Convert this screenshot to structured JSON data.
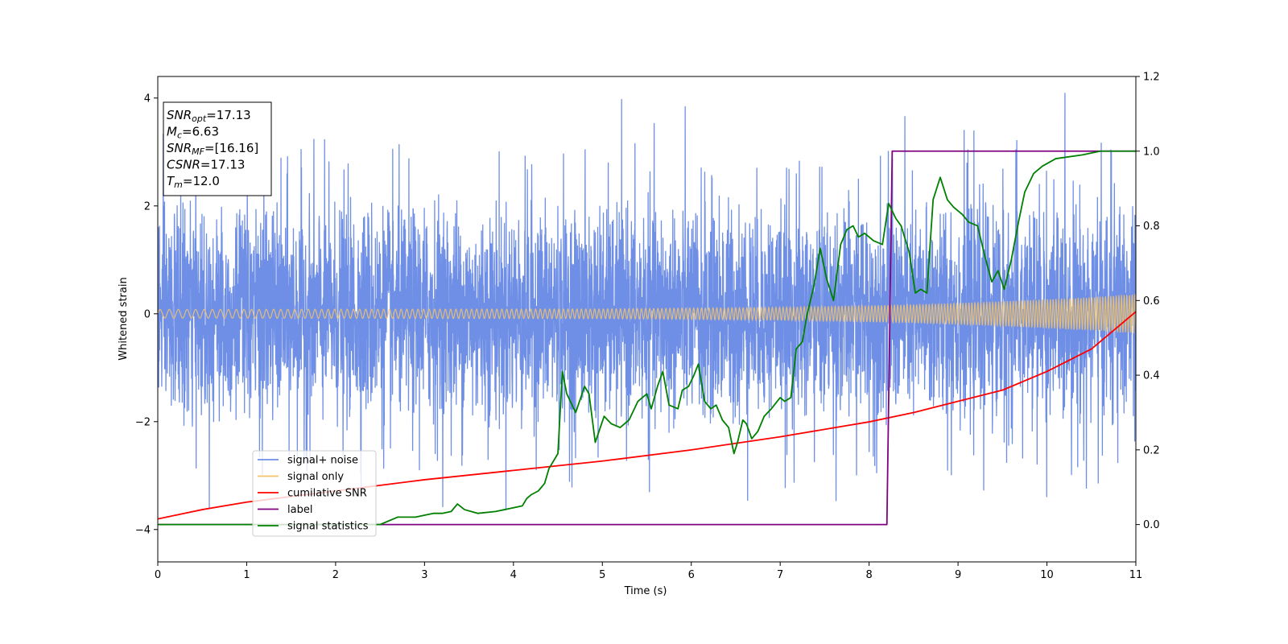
{
  "chart_data": {
    "type": "line",
    "xlabel": "Time (s)",
    "ylabel": "Whitened strain",
    "xlim": [
      0,
      11
    ],
    "ylim": [
      -4.6,
      4.4
    ],
    "y2lim": [
      -0.1,
      1.2
    ],
    "xticks": [
      0,
      1,
      2,
      3,
      4,
      5,
      6,
      7,
      8,
      9,
      10,
      11
    ],
    "yticks": [
      -4,
      -2,
      0,
      2,
      4
    ],
    "y2ticks": [
      0.0,
      0.2,
      0.4,
      0.6,
      0.8,
      1.0,
      1.2
    ],
    "grid": false,
    "legend_position": "lower-left",
    "annotation": {
      "lines": [
        {
          "main": "SNR",
          "sub": "opt",
          "rest": "=17.13"
        },
        {
          "main": "M",
          "sub": "c",
          "rest": "=6.63"
        },
        {
          "main": "SNR",
          "sub": "MF",
          "rest": "=[16.16]"
        },
        {
          "main": "CSNR",
          "sub": "",
          "rest": "=17.13"
        },
        {
          "main": "T",
          "sub": "m",
          "rest": "=12.0"
        }
      ]
    },
    "series": [
      {
        "name": "signal+ noise",
        "color": "#6f8fe6",
        "axis": "left",
        "kind": "noise",
        "std": 0.95,
        "max_abs": 4.0
      },
      {
        "name": "signal only",
        "color": "#f5c46a",
        "axis": "left",
        "kind": "chirp",
        "amplitude": {
          "x": [
            0,
            5,
            7,
            8.5,
            9.5,
            10.5,
            11
          ],
          "y": [
            0.08,
            0.09,
            0.12,
            0.17,
            0.23,
            0.31,
            0.37
          ]
        }
      },
      {
        "name": "cumilative SNR",
        "color": "#ff0000",
        "axis": "right",
        "x": [
          0,
          0.5,
          1,
          2,
          3,
          4,
          5,
          6,
          7,
          8,
          8.5,
          9,
          9.5,
          10,
          10.5,
          11
        ],
        "y": [
          0.015,
          0.04,
          0.06,
          0.09,
          0.12,
          0.145,
          0.17,
          0.2,
          0.235,
          0.275,
          0.3,
          0.33,
          0.36,
          0.41,
          0.47,
          0.57
        ]
      },
      {
        "name": "label",
        "color": "#800080",
        "axis": "right",
        "x": [
          0,
          8.2,
          8.26,
          11
        ],
        "y": [
          0.0,
          0.0,
          1.0,
          1.0
        ]
      },
      {
        "name": "signal statistics",
        "color": "#008000",
        "axis": "right",
        "x": [
          0,
          2.5,
          2.7,
          2.9,
          3.0,
          3.1,
          3.2,
          3.3,
          3.37,
          3.45,
          3.6,
          3.8,
          3.9,
          4.0,
          4.1,
          4.15,
          4.2,
          4.28,
          4.35,
          4.4,
          4.5,
          4.55,
          4.6,
          4.7,
          4.8,
          4.85,
          4.92,
          5.02,
          5.1,
          5.2,
          5.3,
          5.4,
          5.5,
          5.55,
          5.62,
          5.68,
          5.75,
          5.85,
          5.9,
          5.97,
          6.03,
          6.08,
          6.15,
          6.22,
          6.28,
          6.35,
          6.42,
          6.48,
          6.52,
          6.58,
          6.62,
          6.68,
          6.75,
          6.82,
          6.9,
          7.0,
          7.05,
          7.12,
          7.18,
          7.25,
          7.3,
          7.38,
          7.45,
          7.52,
          7.6,
          7.68,
          7.75,
          7.82,
          7.88,
          7.95,
          8.05,
          8.15,
          8.22,
          8.3,
          8.36,
          8.45,
          8.52,
          8.58,
          8.65,
          8.72,
          8.8,
          8.88,
          8.95,
          9.05,
          9.12,
          9.22,
          9.3,
          9.38,
          9.45,
          9.52,
          9.6,
          9.68,
          9.75,
          9.85,
          9.95,
          10.1,
          10.4,
          10.6,
          10.8,
          11.0
        ],
        "y": [
          0.0,
          0.0,
          0.02,
          0.02,
          0.025,
          0.03,
          0.03,
          0.035,
          0.055,
          0.04,
          0.03,
          0.035,
          0.04,
          0.045,
          0.05,
          0.07,
          0.08,
          0.09,
          0.11,
          0.15,
          0.19,
          0.41,
          0.35,
          0.3,
          0.37,
          0.35,
          0.22,
          0.29,
          0.27,
          0.26,
          0.28,
          0.33,
          0.35,
          0.31,
          0.37,
          0.41,
          0.32,
          0.31,
          0.36,
          0.37,
          0.4,
          0.43,
          0.33,
          0.31,
          0.32,
          0.28,
          0.26,
          0.19,
          0.22,
          0.28,
          0.27,
          0.23,
          0.25,
          0.29,
          0.31,
          0.34,
          0.33,
          0.34,
          0.47,
          0.49,
          0.56,
          0.64,
          0.74,
          0.66,
          0.6,
          0.75,
          0.79,
          0.8,
          0.77,
          0.78,
          0.76,
          0.75,
          0.86,
          0.82,
          0.8,
          0.73,
          0.62,
          0.63,
          0.62,
          0.87,
          0.93,
          0.87,
          0.85,
          0.83,
          0.81,
          0.8,
          0.72,
          0.65,
          0.68,
          0.63,
          0.71,
          0.81,
          0.89,
          0.94,
          0.96,
          0.98,
          0.99,
          1.0,
          1.0,
          1.0
        ]
      }
    ]
  }
}
